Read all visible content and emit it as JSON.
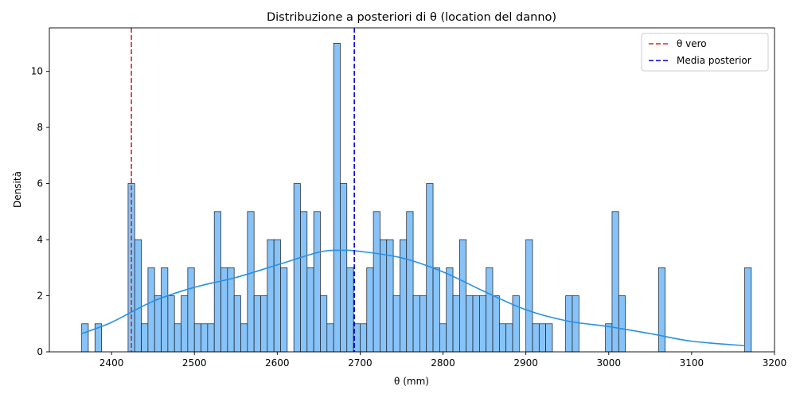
{
  "chart_data": {
    "type": "bar",
    "title": "Distribuzione a posteriori di θ (location del danno)",
    "xlabel": "θ (mm)",
    "ylabel": "Densità",
    "xlim": [
      2325,
      3200
    ],
    "ylim": [
      0,
      11.55
    ],
    "x_ticks": [
      2400,
      2500,
      2600,
      2700,
      2800,
      2900,
      3000,
      3100,
      3200
    ],
    "y_ticks": [
      0,
      2,
      4,
      6,
      8,
      10
    ],
    "bin_start": 2364,
    "bin_width": 8.0,
    "counts": [
      1,
      0,
      1,
      0,
      0,
      0,
      0,
      6,
      4,
      1,
      3,
      2,
      3,
      2,
      1,
      2,
      3,
      1,
      1,
      1,
      5,
      3,
      3,
      2,
      1,
      5,
      2,
      2,
      4,
      4,
      3,
      0,
      6,
      5,
      3,
      5,
      2,
      1,
      11,
      6,
      3,
      1,
      1,
      3,
      5,
      4,
      4,
      2,
      4,
      5,
      2,
      2,
      6,
      3,
      1,
      3,
      2,
      4,
      2,
      2,
      2,
      3,
      2,
      1,
      1,
      2,
      0,
      4,
      1,
      1,
      1,
      0,
      0,
      2,
      2,
      0,
      0,
      0,
      0,
      1,
      5,
      2,
      0,
      0,
      0,
      0,
      0,
      3,
      0,
      0,
      0,
      0,
      0,
      0,
      0,
      0,
      0,
      0,
      0,
      0,
      3
    ],
    "kde": {
      "name": "KDE",
      "x": [
        2364,
        2400,
        2450,
        2500,
        2550,
        2600,
        2650,
        2675,
        2700,
        2750,
        2800,
        2850,
        2900,
        2950,
        3000,
        3050,
        3100,
        3164
      ],
      "y": [
        0.65,
        1.05,
        1.8,
        2.3,
        2.65,
        3.1,
        3.55,
        3.62,
        3.58,
        3.35,
        2.85,
        2.15,
        1.5,
        1.1,
        0.9,
        0.65,
        0.38,
        0.22
      ]
    },
    "lines": [
      {
        "name": "θ vero",
        "x": 2424,
        "color": "#d62728"
      },
      {
        "name": "Media posterior",
        "x": 2693,
        "color": "#0000cc"
      }
    ],
    "legend_position": "top-right",
    "bar_color": "#87c3f8",
    "kde_color": "#2590ea",
    "grid": false
  }
}
